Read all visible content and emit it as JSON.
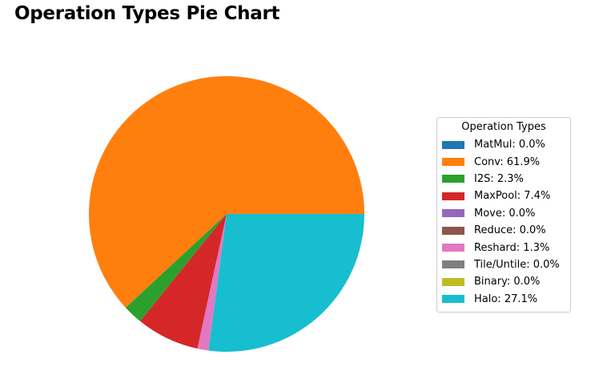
{
  "page": {
    "title": "Operation Types Pie Chart"
  },
  "chart_data": {
    "type": "pie",
    "title": "Operation Types Pie Chart",
    "legend_title": "Operation Types",
    "legend_position": "right",
    "slices": [
      {
        "label": "MatMul",
        "value": 0.0,
        "legend_text": "MatMul: 0.0%",
        "color": "#1f77b4"
      },
      {
        "label": "Conv",
        "value": 61.9,
        "legend_text": "Conv: 61.9%",
        "color": "#ff7f0e"
      },
      {
        "label": "I2S",
        "value": 2.3,
        "legend_text": "I2S: 2.3%",
        "color": "#2ca02c"
      },
      {
        "label": "MaxPool",
        "value": 7.4,
        "legend_text": "MaxPool: 7.4%",
        "color": "#d62728"
      },
      {
        "label": "Move",
        "value": 0.0,
        "legend_text": "Move: 0.0%",
        "color": "#9467bd"
      },
      {
        "label": "Reduce",
        "value": 0.0,
        "legend_text": "Reduce: 0.0%",
        "color": "#8c564b"
      },
      {
        "label": "Reshard",
        "value": 1.3,
        "legend_text": "Reshard: 1.3%",
        "color": "#e377c2"
      },
      {
        "label": "Tile/Untile",
        "value": 0.0,
        "legend_text": "Tile/Untile: 0.0%",
        "color": "#7f7f7f"
      },
      {
        "label": "Binary",
        "value": 0.0,
        "legend_text": "Binary: 0.0%",
        "color": "#bcbd22"
      },
      {
        "label": "Halo",
        "value": 27.1,
        "legend_text": "Halo: 27.1%",
        "color": "#17becf"
      }
    ]
  }
}
